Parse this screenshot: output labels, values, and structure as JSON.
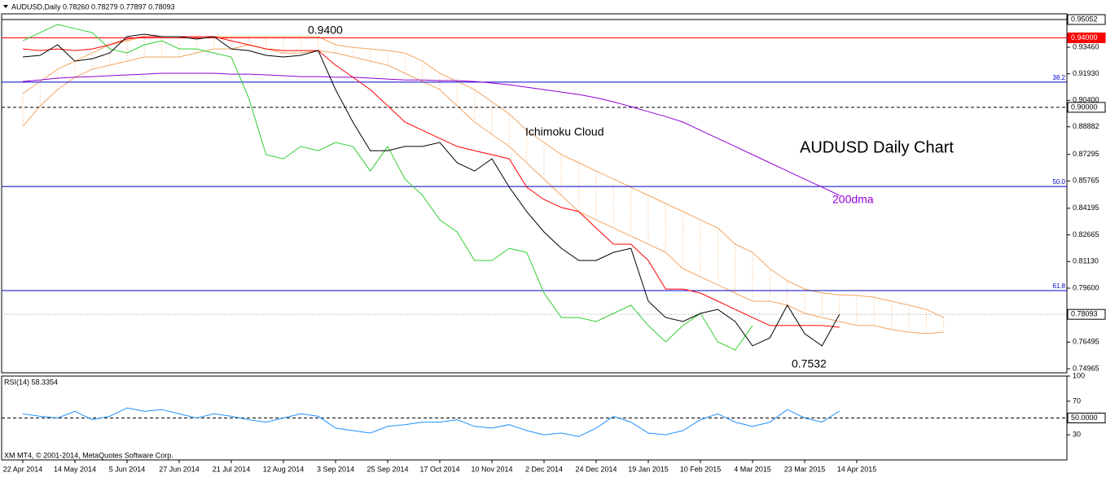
{
  "chart_data": [
    {
      "type": "line",
      "title": "AUDUSD,Daily  0.78260 0.78279 0.77897 0.78093",
      "categories": [
        "22 Apr 2014",
        null,
        null,
        "14 May 2014",
        null,
        null,
        "5 Jun 2014",
        null,
        null,
        "27 Jun 2014",
        null,
        null,
        "21 Jul 2014",
        null,
        null,
        "12 Aug 2014",
        null,
        null,
        "3 Sep 2014",
        null,
        null,
        "25 Sep 2014",
        null,
        null,
        "17 Oct 2014",
        null,
        null,
        "10 Nov 2014",
        null,
        null,
        "2 Dec 2014",
        null,
        null,
        "24 Dec 2014",
        null,
        null,
        "19 Jan 2015",
        null,
        null,
        "10 Feb 2015",
        null,
        null,
        "4 Mar 2015",
        null,
        null,
        "23 Mar 2015",
        null,
        null,
        "14 Apr 2015",
        null,
        null,
        null,
        null,
        null
      ],
      "ylim": [
        0.7473,
        0.9538
      ],
      "yticks": [
        {
          "value": 0.9346,
          "label": "0.93460"
        },
        {
          "value": 0.9193,
          "label": "0.91930"
        },
        {
          "value": 0.904,
          "label": "0.90400"
        },
        0.88882,
        0.87295,
        0.85765,
        0.84195,
        0.82665,
        {
          "value": 0.8113,
          "label": "0.81130"
        },
        {
          "value": 0.796,
          "label": "0.79600"
        },
        0.76495,
        0.74965
      ],
      "levels": [
        {
          "value": 0.95052,
          "label": "0.95052",
          "color": "#000000",
          "line_style": "solid",
          "label_style": "box"
        },
        {
          "value": 0.94,
          "label": "0.94000",
          "color": "#ff0000",
          "line_style": "solid",
          "label_style": "filled"
        },
        {
          "value": 0.9145,
          "label": "38.2",
          "color": "#0000cd",
          "line_style": "solid",
          "label_style": "plain"
        },
        {
          "value": 0.9,
          "label": "0.90000",
          "color": "#000000",
          "line_style": "dashed",
          "label_style": "box"
        },
        {
          "value": 0.8545,
          "label": "50.0",
          "color": "#0000cd",
          "line_style": "solid",
          "label_style": "plain"
        },
        {
          "value": 0.7946,
          "label": "61.8",
          "color": "#0000cd",
          "line_style": "solid",
          "label_style": "plain"
        },
        {
          "value": 0.78093,
          "label": "0.78093",
          "color": "#a0a0a0",
          "line_style": "dotted",
          "label_style": "box"
        }
      ],
      "cloud": {
        "color": "#f4a460",
        "upper": [
          0.9079,
          0.9149,
          0.9219,
          0.9266,
          0.9313,
          0.936,
          0.9383,
          0.9407,
          0.9407,
          0.9407,
          0.9407,
          0.9407,
          0.9407,
          0.9407,
          0.9407,
          0.9407,
          0.9407,
          0.9407,
          0.936,
          0.9345,
          0.9336,
          0.9327,
          0.9313,
          0.9266,
          0.9196,
          0.9149,
          0.9102,
          0.9032,
          0.8962,
          0.8868,
          0.8798,
          0.8728,
          0.8681,
          0.8634,
          0.8587,
          0.8541,
          0.8494,
          0.8447,
          0.84,
          0.8353,
          0.8306,
          0.8213,
          0.8166,
          0.8072,
          0.8002,
          0.7955,
          0.7932,
          0.7922,
          0.7918,
          0.7908,
          0.7885,
          0.7862,
          0.7838,
          0.7791
        ],
        "lower": [
          0.8891,
          0.9009,
          0.9102,
          0.9173,
          0.9219,
          0.9243,
          0.9266,
          0.929,
          0.929,
          0.929,
          0.9313,
          0.9336,
          0.9336,
          0.936,
          0.9336,
          0.9313,
          0.9313,
          0.9327,
          0.9313,
          0.929,
          0.9266,
          0.9243,
          0.9196,
          0.9149,
          0.9102,
          0.9009,
          0.8915,
          0.8845,
          0.8775,
          0.8681,
          0.8587,
          0.8494,
          0.84,
          0.8353,
          0.8306,
          0.826,
          0.8213,
          0.8166,
          0.8072,
          0.8025,
          0.7979,
          0.7932,
          0.7885,
          0.7885,
          0.7862,
          0.7815,
          0.7791,
          0.7768,
          0.7745,
          0.7745,
          0.7721,
          0.7707,
          0.7698,
          0.7707
        ]
      },
      "series": [
        {
          "color": "#9400d3",
          "values": [
            0.9149,
            0.9158,
            0.9168,
            0.9173,
            0.9177,
            0.9182,
            0.9187,
            0.9191,
            0.9196,
            0.9196,
            0.9196,
            0.9196,
            0.9191,
            0.9191,
            0.9187,
            0.9182,
            0.9177,
            0.9177,
            0.9173,
            0.9173,
            0.9168,
            0.9163,
            0.9158,
            0.9158,
            0.9154,
            0.9154,
            0.9149,
            0.914,
            0.913,
            0.9116,
            0.9102,
            0.9088,
            0.9074,
            0.9055,
            0.9032,
            0.9004,
            0.8975,
            0.8947,
            0.8915,
            0.8868,
            0.8821,
            0.8775,
            0.8728,
            0.8681,
            0.8634,
            0.8587,
            0.8541,
            0.8494,
            null,
            null,
            null,
            null,
            null,
            null
          ]
        },
        {
          "color": "#32cd32",
          "values": [
            0.9383,
            0.943,
            0.9477,
            0.9453,
            0.943,
            0.9336,
            0.9313,
            0.936,
            0.9383,
            0.9336,
            0.9336,
            0.9313,
            0.929,
            0.9055,
            0.8728,
            0.8704,
            0.8775,
            0.8751,
            0.8798,
            0.8775,
            0.8634,
            0.8775,
            0.8587,
            0.8494,
            0.8353,
            0.8283,
            0.8119,
            0.8119,
            0.8189,
            0.8166,
            0.7932,
            0.7791,
            0.7791,
            0.7768,
            0.7815,
            0.7862,
            0.7745,
            0.7651,
            0.7745,
            0.7815,
            0.7651,
            0.7604,
            0.7745,
            null,
            null,
            null,
            null,
            null,
            null,
            null,
            null,
            null,
            null,
            null
          ]
        },
        {
          "color": "#ff0000",
          "values": [
            0.9336,
            0.9327,
            0.9336,
            0.9327,
            0.9336,
            0.936,
            0.9393,
            0.9407,
            0.9407,
            0.9407,
            0.9407,
            0.9407,
            0.9383,
            0.936,
            0.9336,
            0.9327,
            0.9327,
            0.9327,
            0.9243,
            0.9173,
            0.9102,
            0.9009,
            0.8915,
            0.8868,
            0.8821,
            0.8775,
            0.8751,
            0.8728,
            0.8704,
            0.8541,
            0.847,
            0.8424,
            0.84,
            0.8306,
            0.8213,
            0.8213,
            0.8119,
            0.7955,
            0.7955,
            0.7932,
            0.7885,
            0.7838,
            0.7791,
            0.7745,
            0.7745,
            0.7745,
            0.7745,
            0.7735,
            null,
            null,
            null,
            null,
            null,
            null
          ]
        },
        {
          "color": "#000000",
          "values": [
            0.929,
            0.9299,
            0.936,
            0.9266,
            0.928,
            0.9313,
            0.9407,
            0.9421,
            0.9407,
            0.9407,
            0.9393,
            0.9407,
            0.9336,
            0.9327,
            0.9299,
            0.929,
            0.9299,
            0.9327,
            0.9102,
            0.8915,
            0.8751,
            0.8751,
            0.8775,
            0.8775,
            0.8798,
            0.8681,
            0.8634,
            0.8704,
            0.8541,
            0.84,
            0.8283,
            0.8189,
            0.8119,
            0.8119,
            0.8166,
            0.8189,
            0.7885,
            0.7791,
            0.7768,
            0.7815,
            0.7838,
            0.7768,
            0.7628,
            0.7674,
            0.7862,
            0.7698,
            0.7628,
            0.78093,
            null,
            null,
            null,
            null,
            null,
            null
          ]
        }
      ],
      "annotations": [
        {
          "text": "0.9400",
          "color": "#000000"
        },
        {
          "text": "Ichimoku Cloud",
          "color": "#000000"
        },
        {
          "text": "AUDUSD Daily Chart",
          "color": "#000000"
        },
        {
          "text": "200dma",
          "color": "#9400d3"
        },
        {
          "text": "0.7532",
          "color": "#000000"
        }
      ]
    },
    {
      "type": "line",
      "title": "RSI(14) 58.3354",
      "ylim": [
        0,
        100
      ],
      "yticks": [
        30,
        70,
        100
      ],
      "levels": [
        {
          "value": 50,
          "label": "50.0000",
          "color": "#000000",
          "line_style": "dashed",
          "label_style": "box"
        }
      ],
      "series": [
        {
          "color": "#1e90ff",
          "values": [
            55,
            52,
            50,
            58,
            48,
            52,
            62,
            58,
            60,
            55,
            50,
            55,
            52,
            48,
            45,
            50,
            55,
            52,
            38,
            35,
            32,
            40,
            42,
            45,
            45,
            48,
            40,
            38,
            42,
            35,
            30,
            32,
            28,
            38,
            52,
            45,
            32,
            30,
            35,
            48,
            55,
            45,
            40,
            45,
            60,
            50,
            45,
            58.3354,
            null,
            null,
            null,
            null,
            null,
            null
          ]
        }
      ]
    }
  ],
  "footer": "XM MT4, © 2001-2014, MetaQuotes Software Corp."
}
